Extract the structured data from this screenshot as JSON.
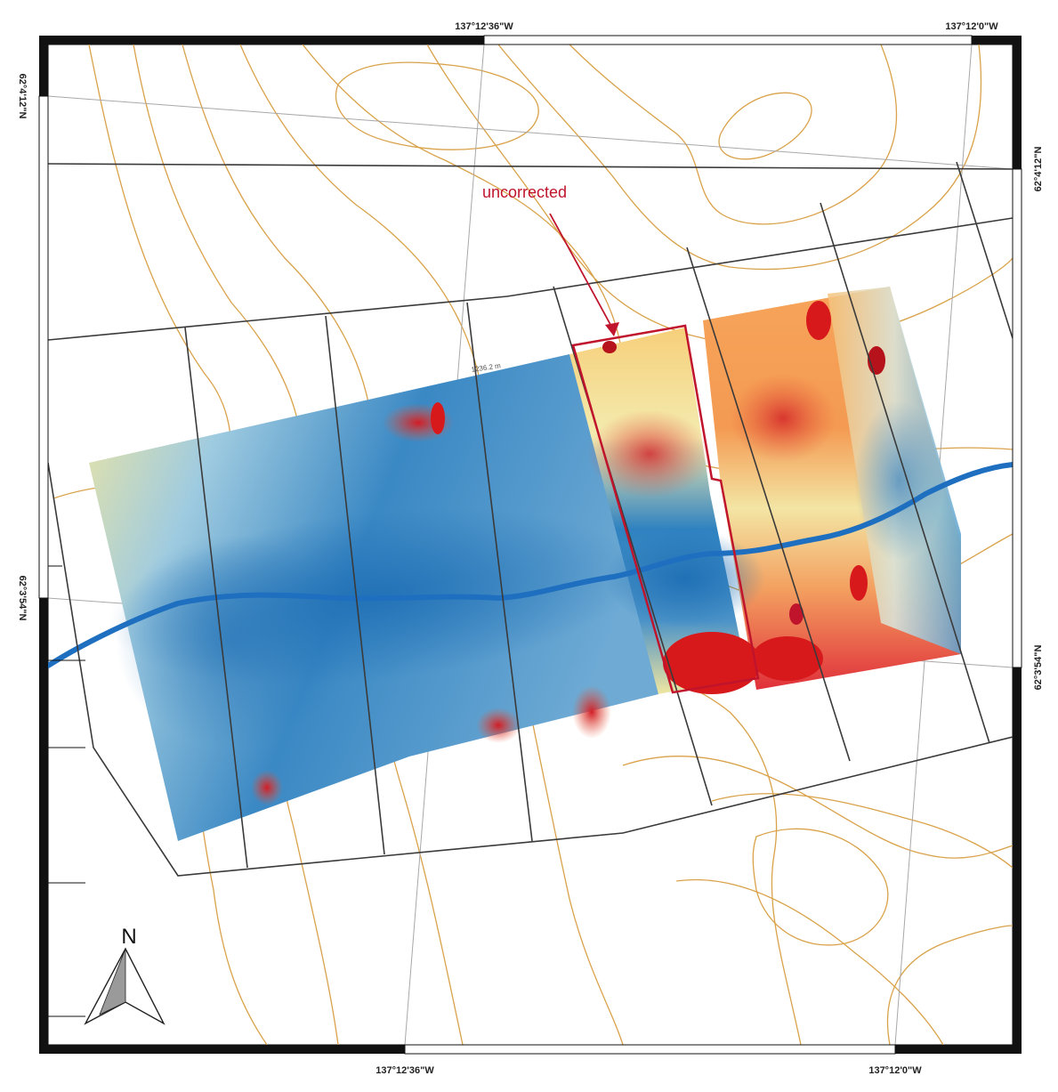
{
  "map": {
    "annotation_label": "uncorrected",
    "north_label": "N",
    "small_label": "1236.2 m",
    "coordinates": {
      "top_lon_1": "137°12'36\"W",
      "top_lon_2": "137°12'0\"W",
      "bottom_lon_1": "137°12'36\"W",
      "bottom_lon_2": "137°12'0\"W",
      "left_lat_1": "62°4'12\"N",
      "left_lat_2": "62°3'54\"N",
      "right_lat_1": "62°4'12\"N",
      "right_lat_2": "62°3'54\"N"
    }
  },
  "colors": {
    "contour": "#d9a24a",
    "stream": "#1e6fc0",
    "grid_line": "#3a3a3a",
    "graticule": "#a8a8a8",
    "highlight": "#c0142c",
    "anomaly_low": "#2c7bb6",
    "anomaly_mid": "#fff2b0",
    "anomaly_high": "#d7191c"
  }
}
